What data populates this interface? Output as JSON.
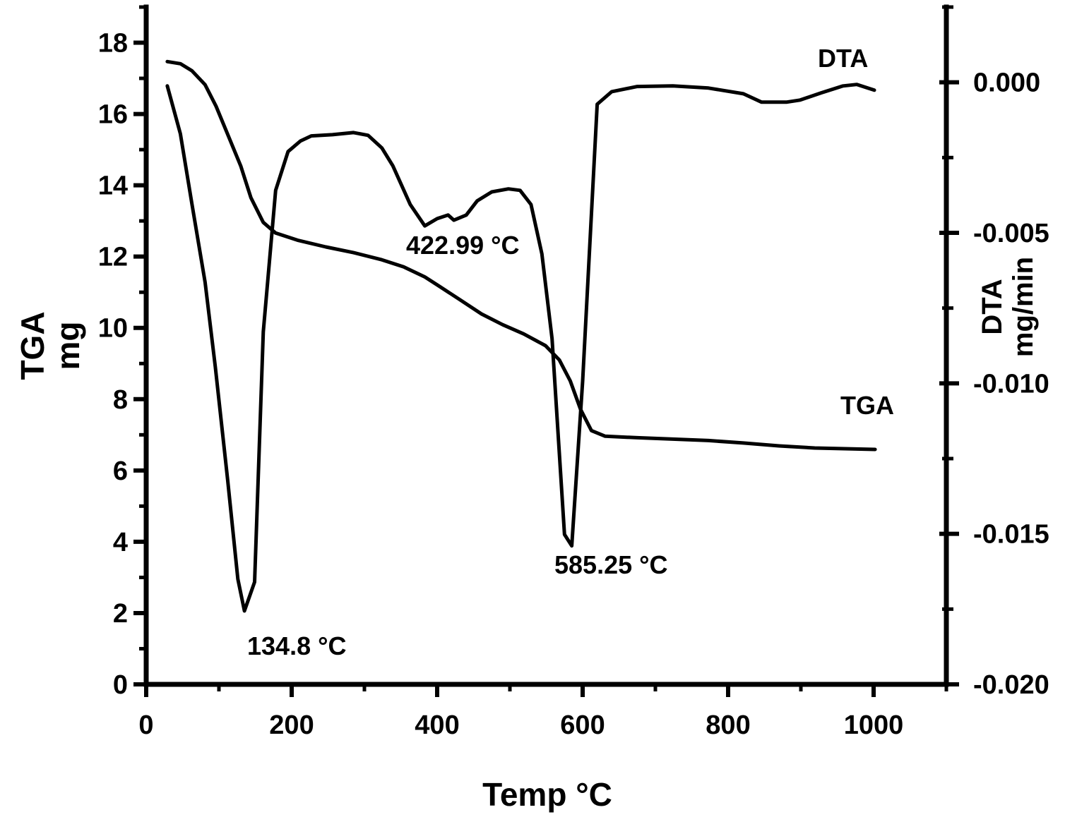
{
  "chart_data": {
    "type": "line",
    "xlabel": "Temp °C",
    "ylabel_left": [
      "TGA",
      "mg"
    ],
    "ylabel_right": [
      "DTA",
      "mg/min"
    ],
    "xlim": [
      0,
      1100
    ],
    "ylim_left": [
      0,
      19
    ],
    "ylim_right": [
      -0.02,
      0.0025
    ],
    "x_ticks": [
      "0",
      "200",
      "400",
      "600",
      "800",
      "1000"
    ],
    "y_left_ticks": [
      "0",
      "2",
      "4",
      "6",
      "8",
      "10",
      "12",
      "14",
      "16",
      "18"
    ],
    "y_right_ticks": [
      "0.000",
      "-0.005",
      "-0.010",
      "-0.015",
      "-0.020"
    ],
    "grid": false,
    "series": [
      {
        "name": "TGA",
        "axis": "left",
        "color": "#000000",
        "x": [
          29,
          47,
          63,
          81,
          96,
          112,
          130,
          144,
          161,
          178,
          208,
          247,
          285,
          324,
          354,
          383,
          402,
          432,
          461,
          490,
          519,
          549,
          568,
          583,
          597,
          612,
          631,
          675,
          773,
          821,
          870,
          919,
          1002
        ],
        "y": [
          17.47,
          17.41,
          17.21,
          16.82,
          16.22,
          15.43,
          14.54,
          13.65,
          12.96,
          12.66,
          12.46,
          12.27,
          12.11,
          11.91,
          11.71,
          11.43,
          11.18,
          10.78,
          10.39,
          10.09,
          9.83,
          9.5,
          9.1,
          8.51,
          7.72,
          7.12,
          6.96,
          6.92,
          6.84,
          6.77,
          6.69,
          6.63,
          6.59
        ]
      },
      {
        "name": "DTA",
        "axis": "right",
        "color": "#000000",
        "x": [
          29,
          47,
          63,
          81,
          95,
          112,
          126,
          135,
          149,
          161,
          178,
          195,
          212,
          227,
          256,
          285,
          305,
          324,
          339,
          363,
          383,
          400,
          415,
          423,
          440,
          455,
          475,
          498,
          514,
          529,
          544,
          558,
          575,
          585,
          600,
          620,
          640,
          675,
          724,
          773,
          821,
          846,
          880,
          899,
          928,
          958,
          977,
          1001
        ],
        "y": [
          -0.00012,
          -0.00171,
          -0.00406,
          -0.00664,
          -0.00946,
          -0.01322,
          -0.0165,
          -0.01756,
          -0.0166,
          -0.00829,
          -0.00359,
          -0.0023,
          -0.00195,
          -0.00178,
          -0.00174,
          -0.00167,
          -0.00176,
          -0.00218,
          -0.00277,
          -0.00406,
          -0.00477,
          -0.00453,
          -0.00441,
          -0.00458,
          -0.00441,
          -0.00394,
          -0.00364,
          -0.00354,
          -0.00359,
          -0.00406,
          -0.0057,
          -0.00852,
          -0.01502,
          -0.0154,
          -0.00993,
          -0.00073,
          -0.00031,
          -0.00014,
          -0.00012,
          -0.00019,
          -0.00038,
          -0.00066,
          -0.00066,
          -0.00059,
          -0.00035,
          -0.00012,
          -7e-05,
          -0.00026
        ]
      }
    ],
    "series_labels": [
      "DTA",
      "TGA"
    ],
    "annotations": [
      "134.8 °C",
      "422.99 °C",
      "585.25 °C"
    ]
  }
}
